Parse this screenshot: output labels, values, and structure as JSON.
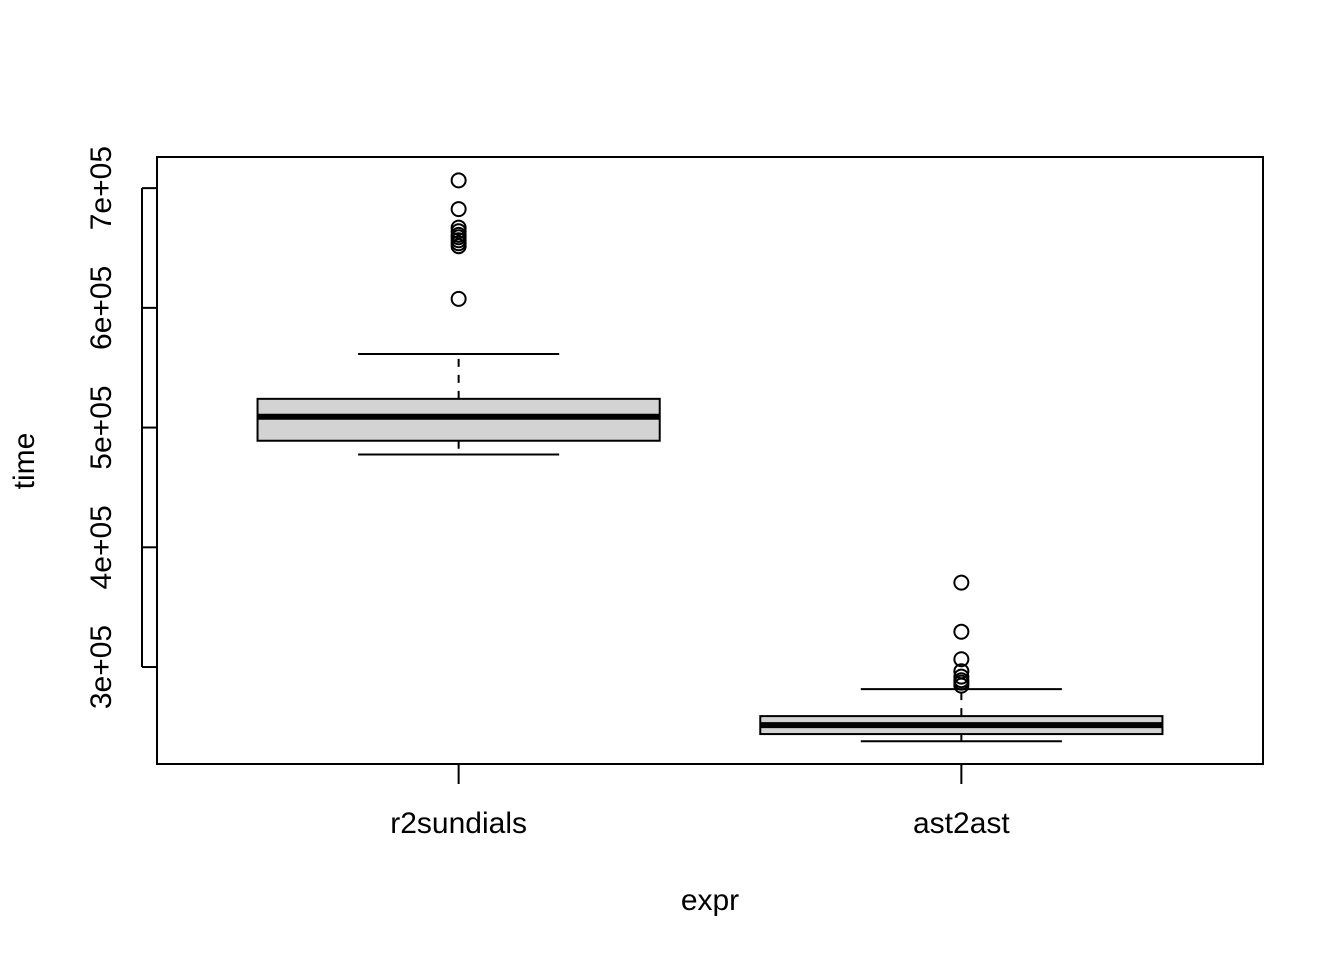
{
  "chart_data": {
    "type": "boxplot",
    "xlabel": "expr",
    "ylabel": "time",
    "categories": [
      "r2sundials",
      "ast2ast"
    ],
    "ylim": [
      219000,
      726000
    ],
    "yticks": [
      300000,
      400000,
      500000,
      600000,
      700000
    ],
    "ytick_labels": [
      "3e+05",
      "4e+05",
      "5e+05",
      "6e+05",
      "7e+05"
    ],
    "box_fill": "#d3d3d3",
    "grid": false,
    "boxes": [
      {
        "name": "r2sundials",
        "lower_whisker": 477500,
        "q1": 489000,
        "median": 509000,
        "q3": 524000,
        "upper_whisker": 561500,
        "outliers": [
          706500,
          682500,
          667000,
          664000,
          661000,
          659000,
          656500,
          654000,
          651500,
          607500
        ]
      },
      {
        "name": "ast2ast",
        "lower_whisker": 238000,
        "q1": 244000,
        "median": 251500,
        "q3": 259000,
        "upper_whisker": 281500,
        "outliers": [
          370500,
          329500,
          306500,
          296500,
          292000,
          289000,
          287000,
          284500
        ]
      }
    ]
  }
}
